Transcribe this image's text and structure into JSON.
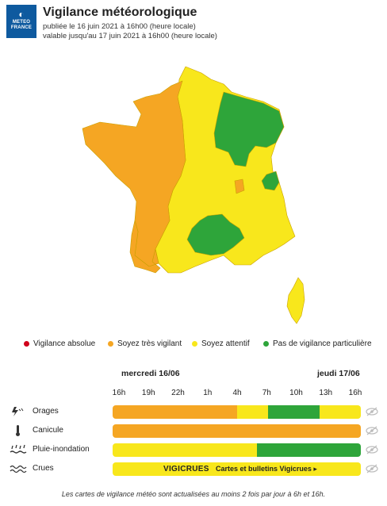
{
  "header": {
    "logo_line1": "METEO",
    "logo_line2": "FRANCE",
    "title": "Vigilance météorologique",
    "published": "publiée le 16 juin 2021 à 16h00 (heure locale)",
    "valid": "valable jusqu'au 17 juin 2021 à 16h00 (heure locale)"
  },
  "colors": {
    "red": "#d0021b",
    "orange": "#f5a623",
    "yellow": "#f8e71c",
    "green": "#2ea53a"
  },
  "legend": [
    {
      "label": "Vigilance absolue",
      "color": "#d0021b"
    },
    {
      "label": "Soyez très vigilant",
      "color": "#f5a623"
    },
    {
      "label": "Soyez attentif",
      "color": "#f8e71c"
    },
    {
      "label": "Pas de vigilance particulière",
      "color": "#2ea53a"
    }
  ],
  "timeline": {
    "day1": "mercredi 16/06",
    "day2": "jeudi 17/06",
    "hours": [
      "16h",
      "19h",
      "22h",
      "1h",
      "4h",
      "7h",
      "10h",
      "13h",
      "16h"
    ]
  },
  "phenomena": [
    {
      "name": "Orages",
      "icon": "lightning-icon",
      "segments": [
        {
          "level": "orange",
          "from": 0,
          "to": 0.5
        },
        {
          "level": "yellow",
          "from": 0.5,
          "to": 0.625
        },
        {
          "level": "green",
          "from": 0.625,
          "to": 0.835
        },
        {
          "level": "yellow",
          "from": 0.835,
          "to": 1
        }
      ]
    },
    {
      "name": "Canicule",
      "icon": "thermometer-icon",
      "segments": [
        {
          "level": "orange",
          "from": 0,
          "to": 1
        }
      ]
    },
    {
      "name": "Pluie-inondation",
      "icon": "rain-flood-icon",
      "segments": [
        {
          "level": "yellow",
          "from": 0,
          "to": 0.58
        },
        {
          "level": "green",
          "from": 0.58,
          "to": 1
        }
      ]
    },
    {
      "name": "Crues",
      "icon": "waves-icon",
      "segments": [
        {
          "level": "yellow",
          "from": 0,
          "to": 1
        }
      ]
    }
  ],
  "crues": {
    "vigicrues": "VIGICRUES",
    "link": "Cartes et bulletins Vigicrues ▸"
  },
  "footer": "Les cartes de vigilance météo sont actualisées au moins 2 fois par jour à 6h et 16h."
}
